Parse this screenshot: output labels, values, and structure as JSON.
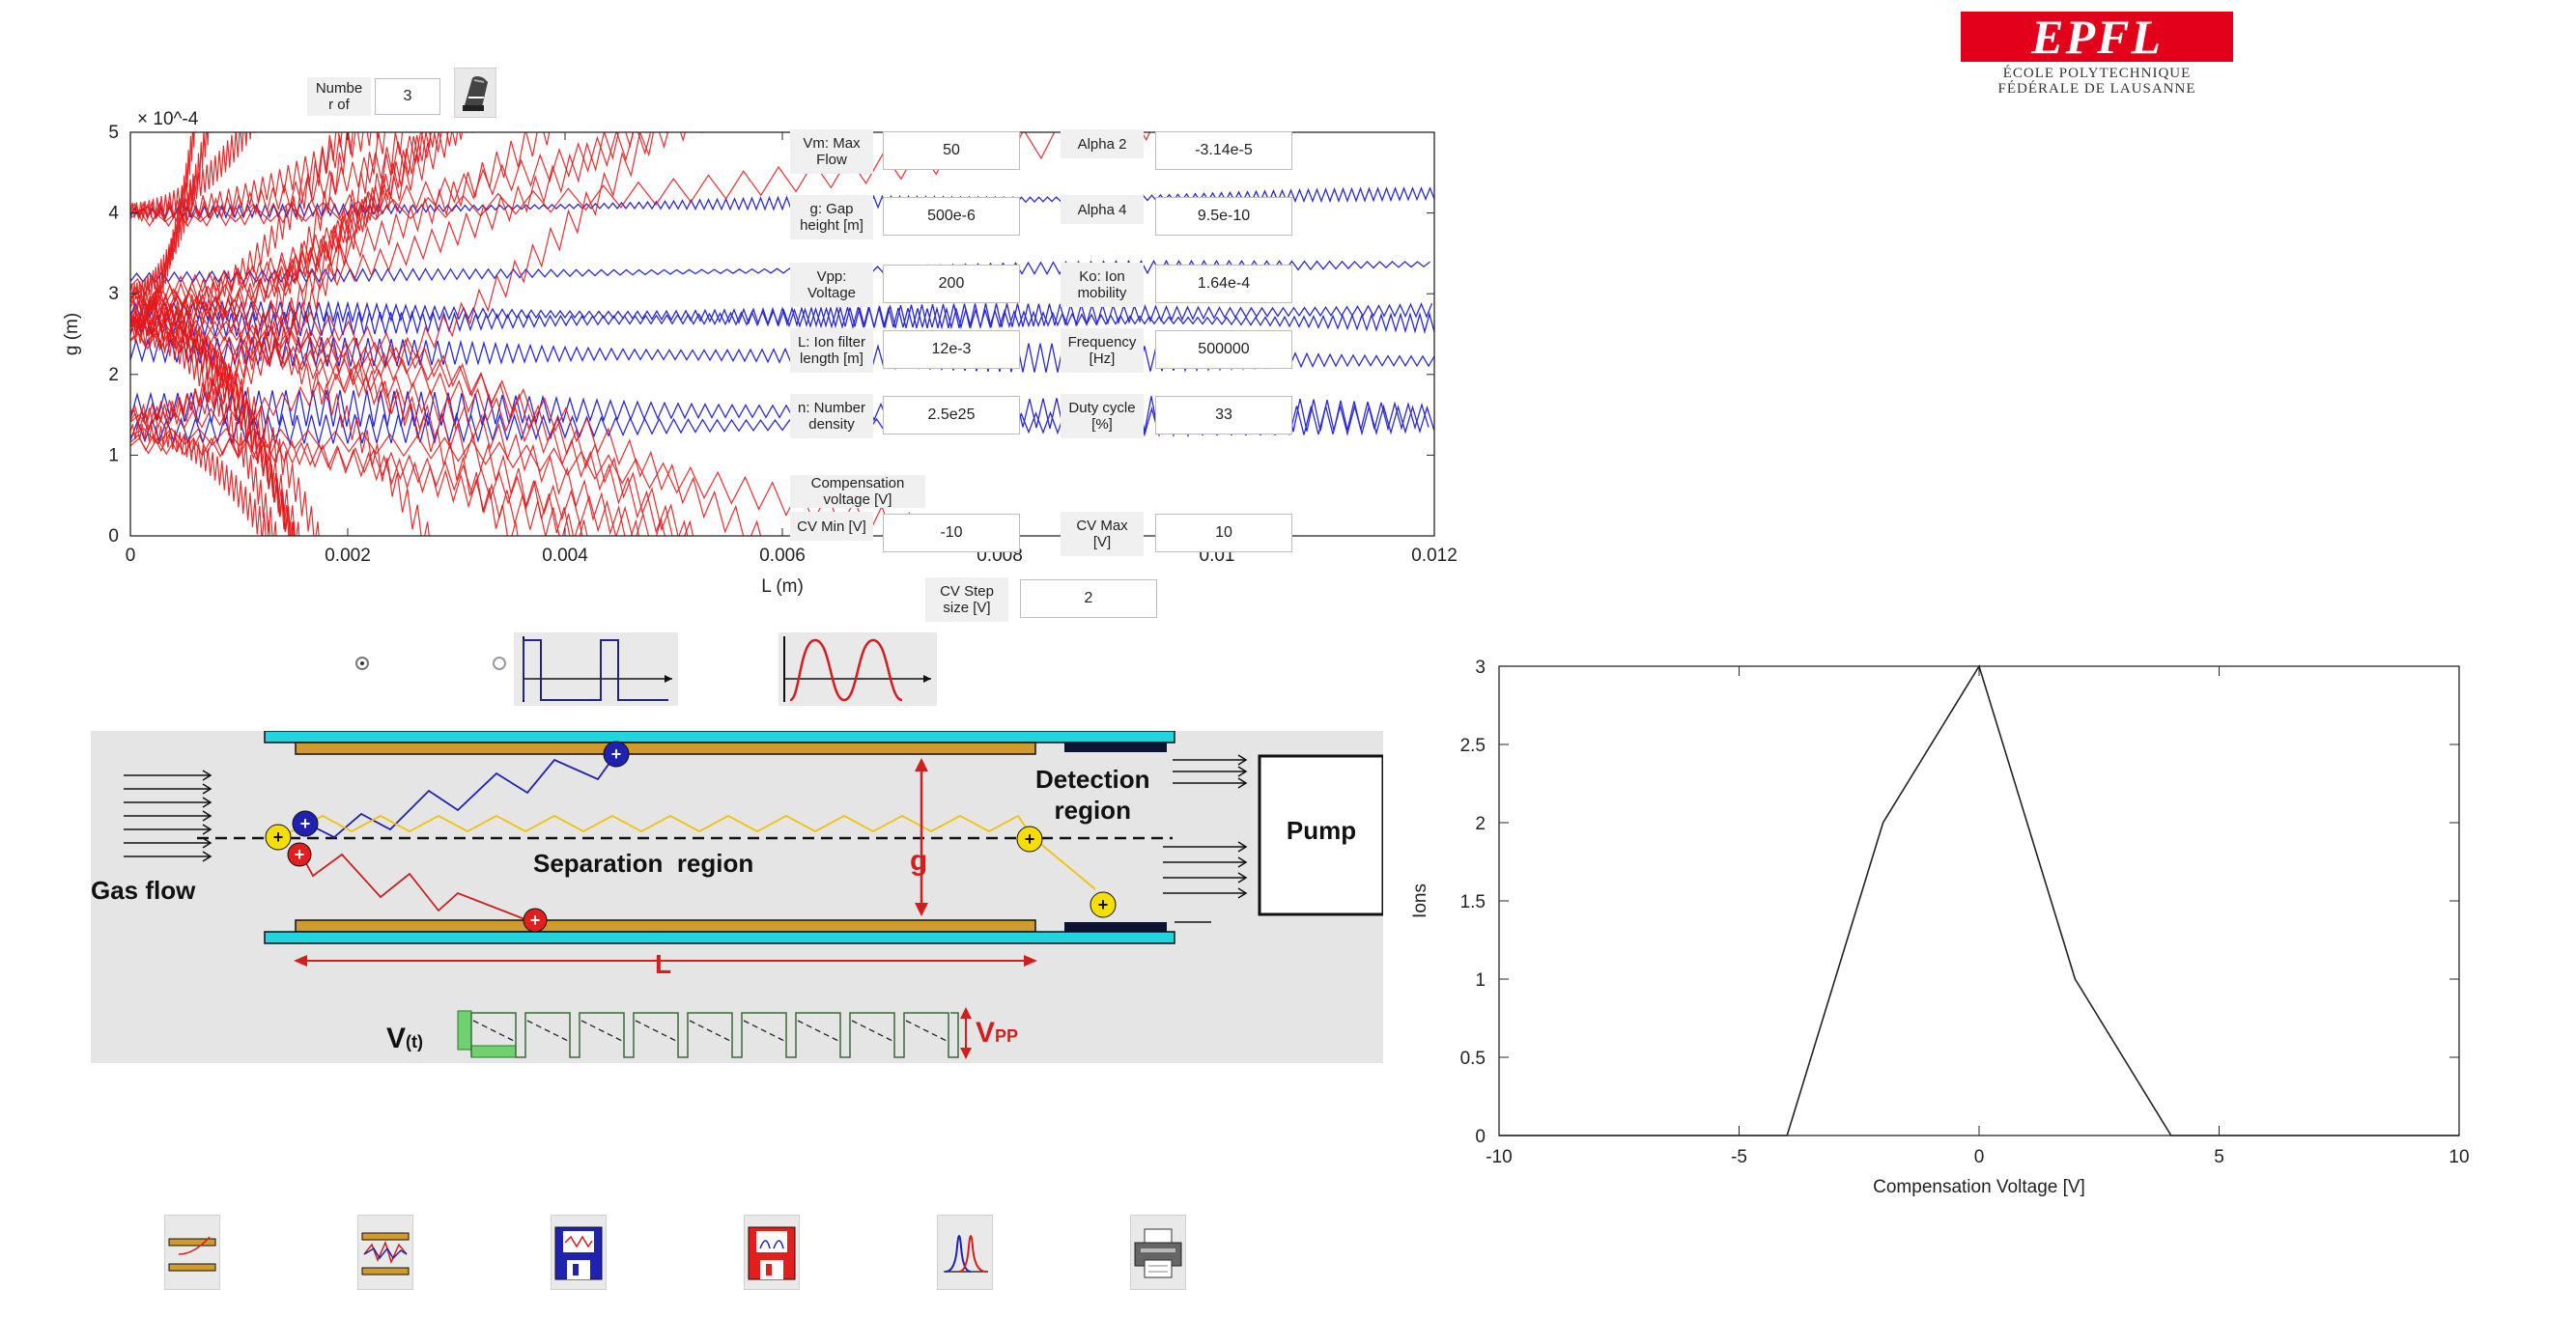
{
  "logo": {
    "main": "EPFL",
    "line1": "ÉCOLE POLYTECHNIQUE",
    "line2": "FÉDÉRALE DE LAUSANNE",
    "color": "#e2001a"
  },
  "top_plot": {
    "exponent": "× 10^-4",
    "ylabel": "g (m)",
    "xlabel": "L (m)",
    "yticks": [
      "5",
      "4",
      "3",
      "2",
      "1",
      "0"
    ],
    "xticks": [
      "0",
      "0.002",
      "0.004",
      "0.006",
      "0.008",
      "0.01",
      "0.012"
    ],
    "xlim": [
      0,
      0.012
    ],
    "ylim": [
      0,
      5
    ],
    "trajectory_colors": {
      "filtered": "#e3171b",
      "transmitted": "#2a2ad6"
    }
  },
  "number_of": {
    "label": "Numbe\nr of",
    "value": "3"
  },
  "params": {
    "vm": {
      "label": "Vm: Max\nFlow",
      "value": "50"
    },
    "g": {
      "label": "g: Gap\nheight [m]",
      "value": "500e-6"
    },
    "vpp": {
      "label": "Vpp:\nVoltage",
      "value": "200"
    },
    "len": {
      "label": "L: Ion filter\nlength [m]",
      "value": "12e-3"
    },
    "n": {
      "label": "n: Number\ndensity",
      "value": "2.5e25"
    },
    "alpha2": {
      "label": "Alpha 2",
      "value": "-3.14e-5"
    },
    "alpha4": {
      "label": "Alpha 4",
      "value": "9.5e-10"
    },
    "ko": {
      "label": "Ko: Ion\nmobility",
      "value": "1.64e-4"
    },
    "freq": {
      "label": "Frequency\n[Hz]",
      "value": "500000"
    },
    "duty": {
      "label": "Duty cycle\n[%]",
      "value": "33"
    },
    "comp": {
      "label": "Compensation\nvoltage [V]"
    },
    "cvmin": {
      "label": "CV Min [V]",
      "value": "-10"
    },
    "cvmax": {
      "label": "CV Max\n[V]",
      "value": "10"
    },
    "cvstep": {
      "label": "CV Step\nsize [V]",
      "value": "2"
    }
  },
  "waveform": {
    "square_color": "#22228c",
    "sine_color": "#d41e1e"
  },
  "diagram": {
    "gas_flow": "Gas flow",
    "separation": "Separation  region",
    "detection1": "Detection",
    "detection2": "region",
    "pump": "Pump",
    "g_label": "g",
    "l_label": "L",
    "vt": "V",
    "vt_sub": "(t)",
    "vpp": "V",
    "vpp_sub": "PP"
  },
  "spectrum": {
    "xlabel": "Compensation Voltage [V]",
    "ylabel": "Ions",
    "yticks": [
      "3",
      "2.5",
      "2",
      "1.5",
      "1",
      "0.5",
      "0"
    ],
    "xticks": [
      "-10",
      "-5",
      "0",
      "5",
      "10"
    ],
    "xlim": [
      -10,
      10
    ],
    "ylim": [
      0,
      3
    ]
  },
  "chart_data": {
    "type": "line",
    "x": [
      -10,
      -8,
      -6,
      -4,
      -2,
      0,
      2,
      4,
      6,
      8,
      10
    ],
    "values": [
      0,
      0,
      0,
      0,
      2,
      3,
      1,
      0,
      0,
      0,
      0
    ],
    "xlabel": "Compensation Voltage [V]",
    "ylabel": "Ions",
    "xlim": [
      -10,
      10
    ],
    "ylim": [
      0,
      3
    ]
  }
}
